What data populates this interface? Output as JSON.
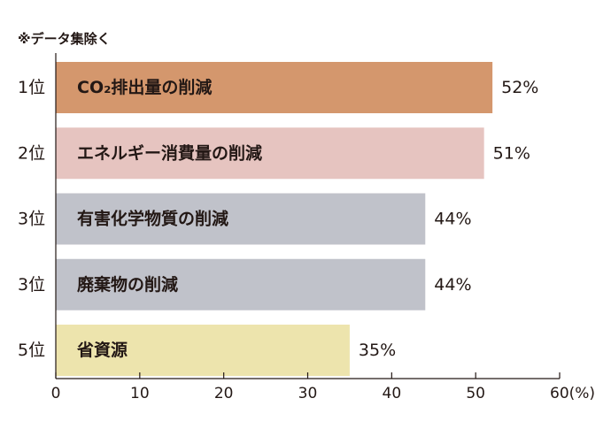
{
  "note": "※データ集除く",
  "colors": [
    "#d4976d",
    "#e6c4c0",
    "#c0c2ca",
    "#c0c2ca",
    "#ede4ad"
  ],
  "chart_data": {
    "type": "bar",
    "orientation": "horizontal",
    "ranks": [
      "1位",
      "2位",
      "3位",
      "3位",
      "5位"
    ],
    "categories": [
      "CO₂排出量の削減",
      "エネルギー消費量の削減",
      "有害化学物質の削減",
      "廃棄物の削減",
      "省資源"
    ],
    "values": [
      52,
      51,
      44,
      44,
      35
    ],
    "value_labels": [
      "52%",
      "51%",
      "44%",
      "44%",
      "35%"
    ],
    "xlim": [
      0,
      60
    ],
    "ticks": [
      "0",
      "10",
      "20",
      "30",
      "40",
      "50",
      "60(%)"
    ],
    "tick_values": [
      0,
      10,
      20,
      30,
      40,
      50,
      60
    ],
    "grid": false
  }
}
